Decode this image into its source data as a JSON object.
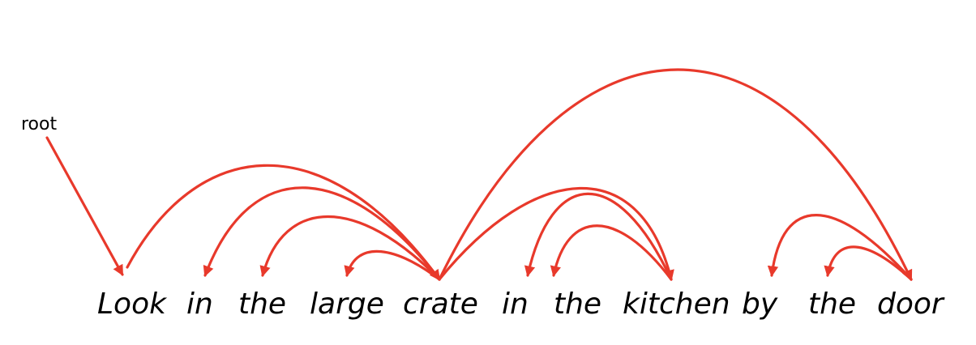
{
  "root_label": "root",
  "words": [
    "Look",
    "in",
    "the",
    "large",
    "crate",
    "in",
    "the",
    "kitchen",
    "by",
    "the",
    "door"
  ],
  "arc_color": "#e8392b",
  "dependencies": [
    {
      "from": "root",
      "to": 0
    },
    {
      "from": 4,
      "to": 0
    },
    {
      "from": 4,
      "to": 1
    },
    {
      "from": 4,
      "to": 2
    },
    {
      "from": 4,
      "to": 3
    },
    {
      "from": 10,
      "to": 4
    },
    {
      "from": 7,
      "to": 5
    },
    {
      "from": 7,
      "to": 6
    },
    {
      "from": 4,
      "to": 7
    },
    {
      "from": 10,
      "to": 8
    },
    {
      "from": 10,
      "to": 9
    }
  ]
}
